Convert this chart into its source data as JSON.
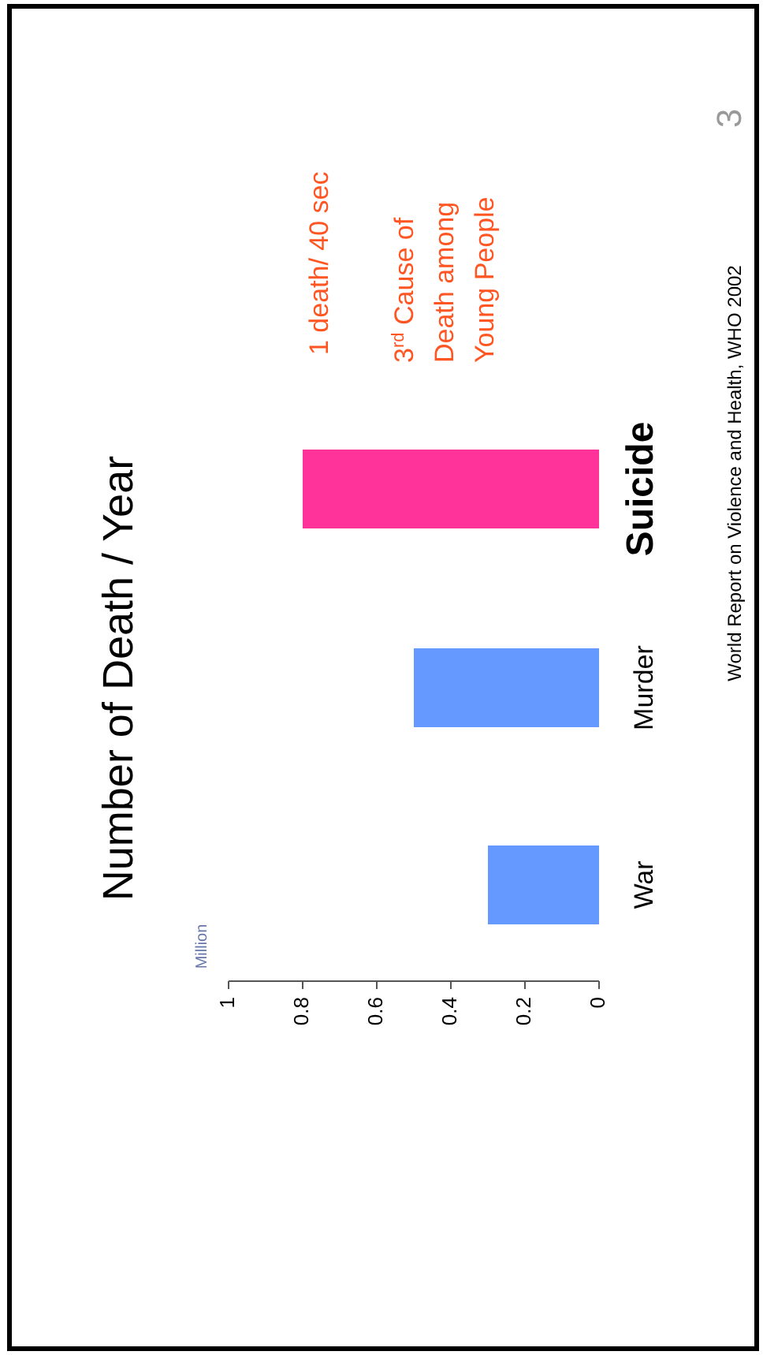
{
  "chart_data": {
    "type": "bar",
    "orientation": "horizontal",
    "title": "Number of Death / Year",
    "categories": [
      "Suicide",
      "Murder",
      "War"
    ],
    "values": [
      0.8,
      0.5,
      0.3
    ],
    "colors": [
      "#ff3399",
      "#6699ff",
      "#6699ff"
    ],
    "xlim": [
      1,
      0
    ],
    "xticks": [
      1,
      0.8,
      0.6,
      0.4,
      0.2,
      0
    ],
    "grid": false,
    "annotations": [
      "1 death/ 40 sec",
      "3$^{rd}$ Cause of\nDeath among\nYoung People",
      "World Report on Violence and Health, WHO 2002",
      "3",
      "Million"
    ]
  }
}
